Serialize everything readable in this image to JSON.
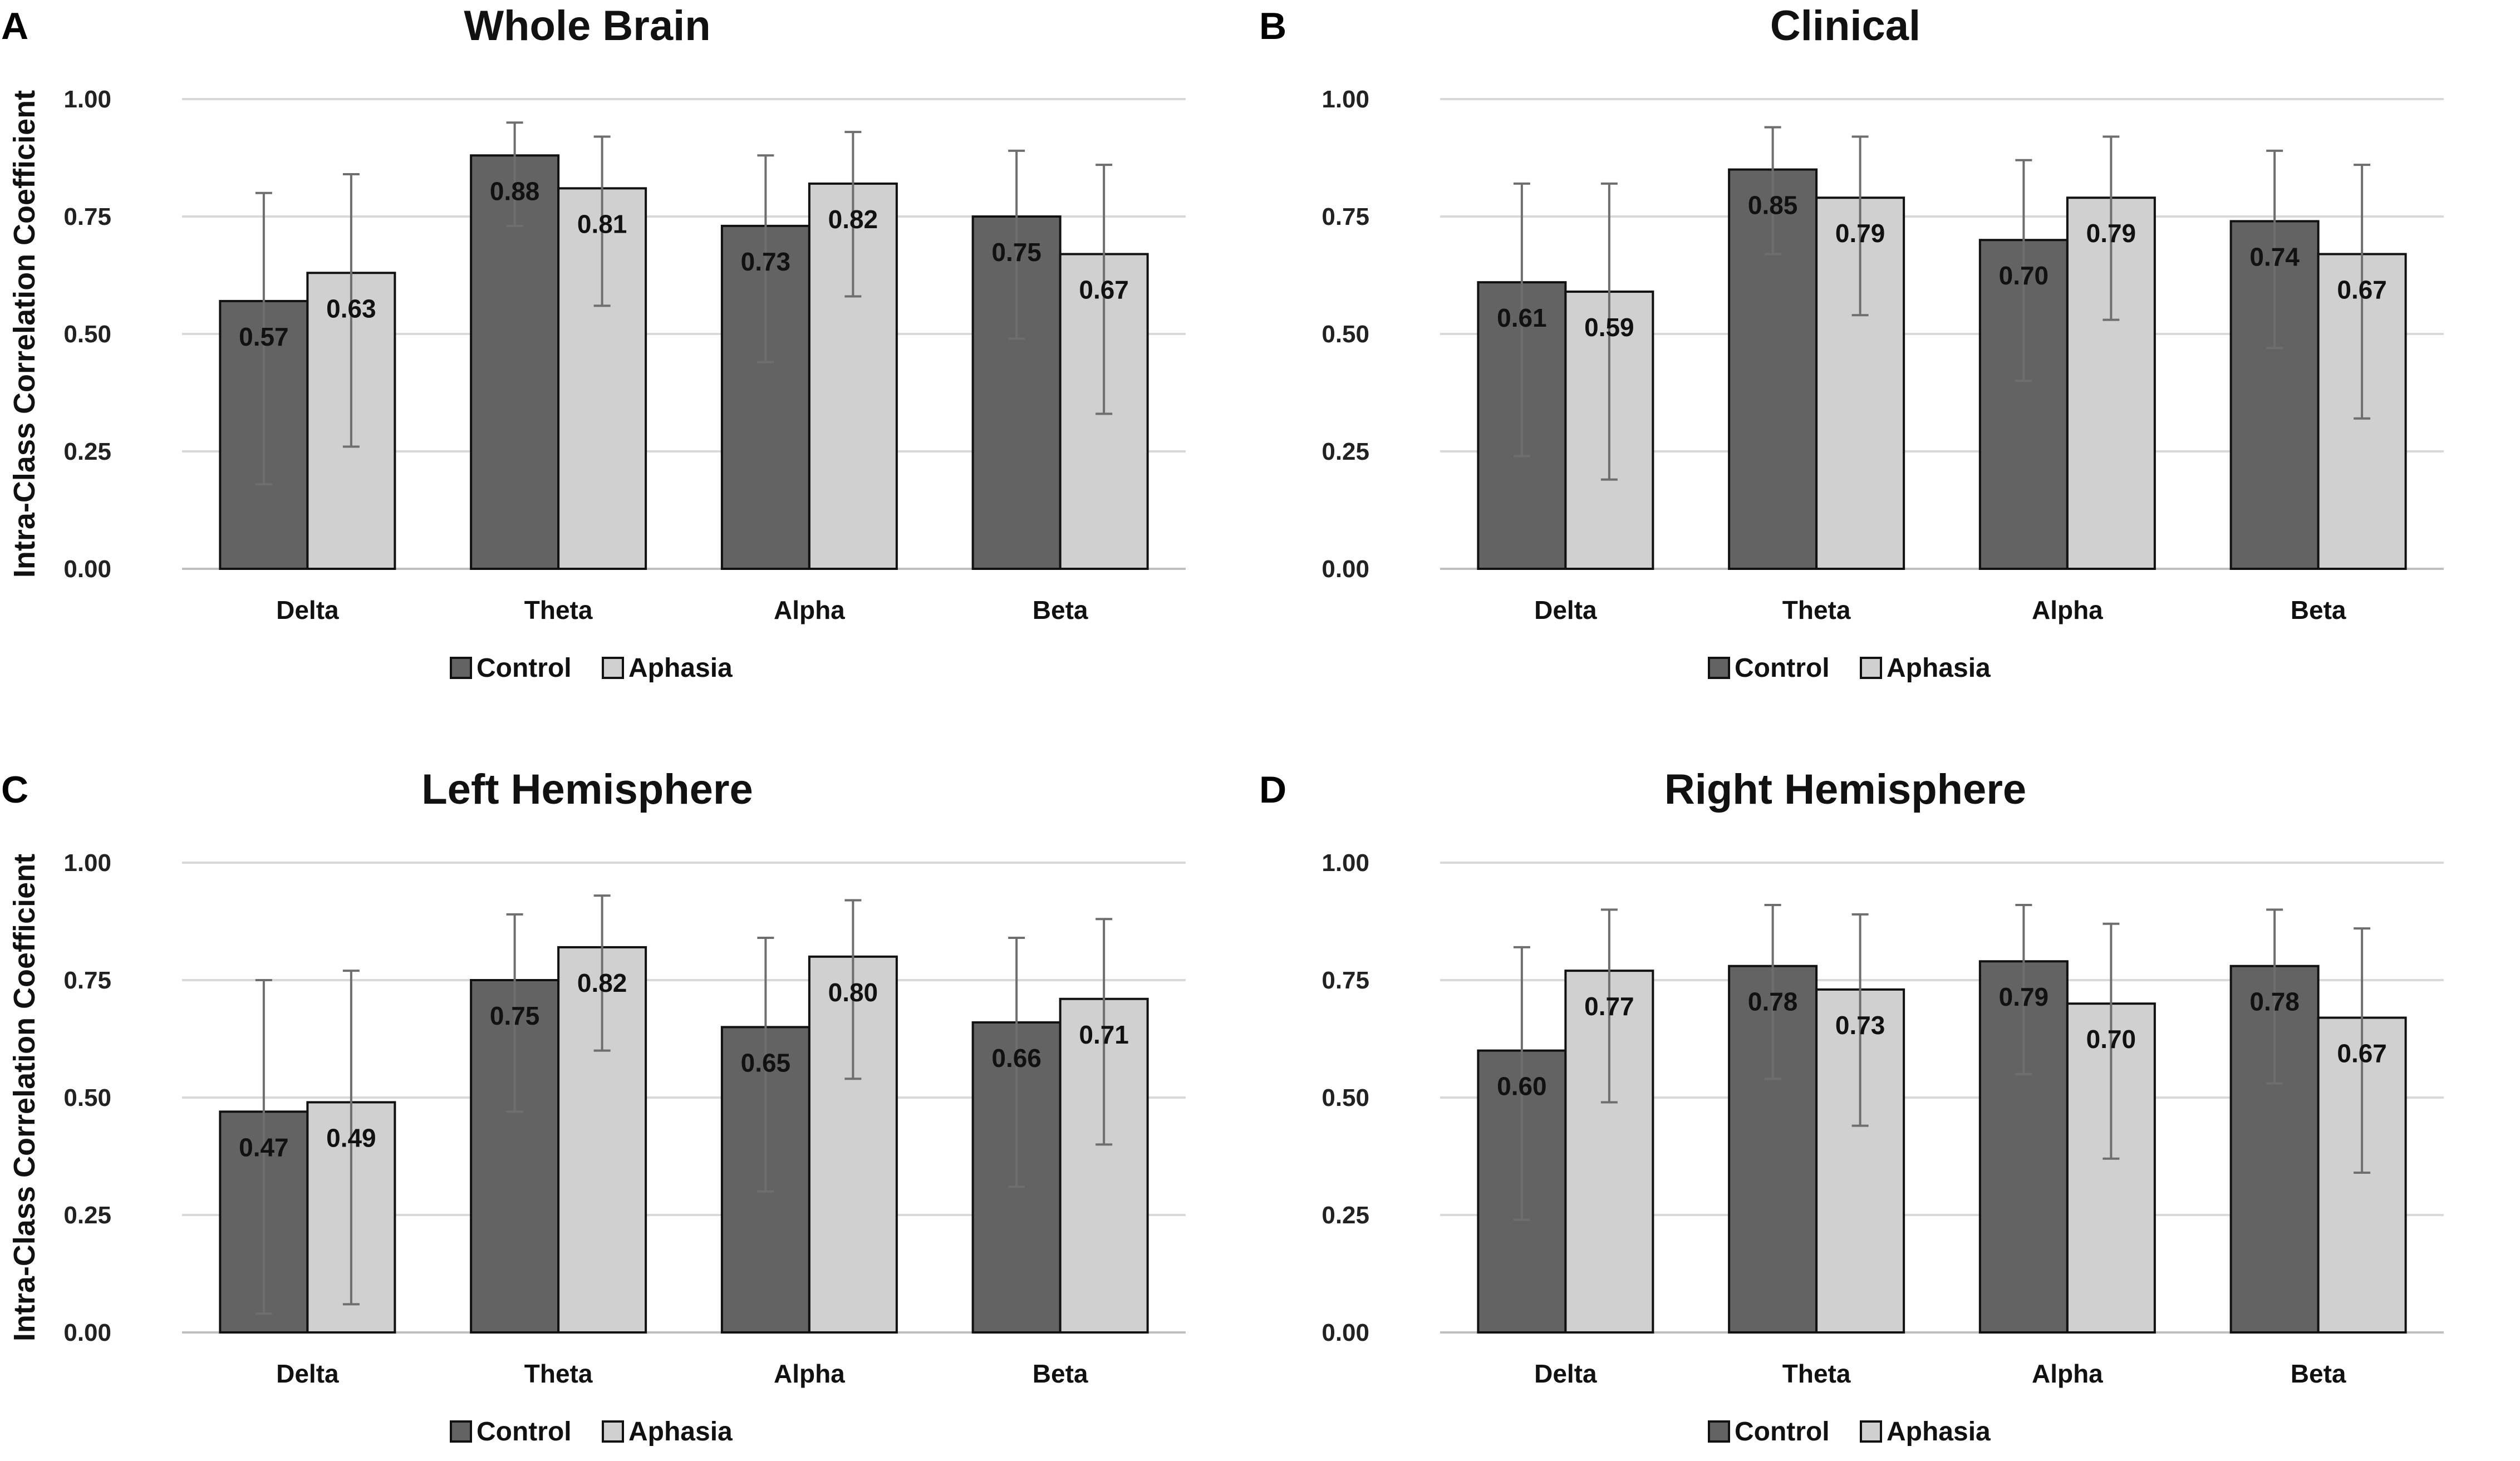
{
  "y_axis_label": "Intra-Class Correlation Coefficient",
  "legend": [
    "Control",
    "Aphasia"
  ],
  "colors": {
    "Control": "#636363",
    "Aphasia": "#d0d0d0"
  },
  "chart_data": [
    {
      "panel": "A",
      "type": "bar",
      "title": "Whole Brain",
      "categories": [
        "Delta",
        "Theta",
        "Alpha",
        "Beta"
      ],
      "ylim": [
        0,
        1
      ],
      "yticks": [
        "0.00",
        "0.25",
        "0.50",
        "0.75",
        "1.00"
      ],
      "series": [
        {
          "name": "Control",
          "values": [
            0.57,
            0.88,
            0.73,
            0.75
          ],
          "labels": [
            "0.57",
            "0.88",
            "0.73",
            "0.75"
          ],
          "err_low": [
            0.18,
            0.73,
            0.44,
            0.49
          ],
          "err_high": [
            0.8,
            0.95,
            0.88,
            0.89
          ]
        },
        {
          "name": "Aphasia",
          "values": [
            0.63,
            0.81,
            0.82,
            0.67
          ],
          "labels": [
            "0.63",
            "0.81",
            "0.82",
            "0.67"
          ],
          "err_low": [
            0.26,
            0.56,
            0.58,
            0.33
          ],
          "err_high": [
            0.84,
            0.92,
            0.93,
            0.86
          ]
        }
      ]
    },
    {
      "panel": "B",
      "type": "bar",
      "title": "Clinical",
      "categories": [
        "Delta",
        "Theta",
        "Alpha",
        "Beta"
      ],
      "ylim": [
        0,
        1
      ],
      "yticks": [
        "0.00",
        "0.25",
        "0.50",
        "0.75",
        "1.00"
      ],
      "series": [
        {
          "name": "Control",
          "values": [
            0.61,
            0.85,
            0.7,
            0.74
          ],
          "labels": [
            "0.61",
            "0.85",
            "0.70",
            "0.74"
          ],
          "err_low": [
            0.24,
            0.67,
            0.4,
            0.47
          ],
          "err_high": [
            0.82,
            0.94,
            0.87,
            0.89
          ]
        },
        {
          "name": "Aphasia",
          "values": [
            0.59,
            0.79,
            0.79,
            0.67
          ],
          "labels": [
            "0.59",
            "0.79",
            "0.79",
            "0.67"
          ],
          "err_low": [
            0.19,
            0.54,
            0.53,
            0.32
          ],
          "err_high": [
            0.82,
            0.92,
            0.92,
            0.86
          ]
        }
      ]
    },
    {
      "panel": "C",
      "type": "bar",
      "title": "Left Hemisphere",
      "categories": [
        "Delta",
        "Theta",
        "Alpha",
        "Beta"
      ],
      "ylim": [
        0,
        1
      ],
      "yticks": [
        "0.00",
        "0.25",
        "0.50",
        "0.75",
        "1.00"
      ],
      "series": [
        {
          "name": "Control",
          "values": [
            0.47,
            0.75,
            0.65,
            0.66
          ],
          "labels": [
            "0.47",
            "0.75",
            "0.65",
            "0.66"
          ],
          "err_low": [
            0.04,
            0.47,
            0.3,
            0.31
          ],
          "err_high": [
            0.75,
            0.89,
            0.84,
            0.84
          ]
        },
        {
          "name": "Aphasia",
          "values": [
            0.49,
            0.82,
            0.8,
            0.71
          ],
          "labels": [
            "0.49",
            "0.82",
            "0.80",
            "0.71"
          ],
          "err_low": [
            0.06,
            0.6,
            0.54,
            0.4
          ],
          "err_high": [
            0.77,
            0.93,
            0.92,
            0.88
          ]
        }
      ]
    },
    {
      "panel": "D",
      "type": "bar",
      "title": "Right Hemisphere",
      "categories": [
        "Delta",
        "Theta",
        "Alpha",
        "Beta"
      ],
      "ylim": [
        0,
        1
      ],
      "yticks": [
        "0.00",
        "0.25",
        "0.50",
        "0.75",
        "1.00"
      ],
      "series": [
        {
          "name": "Control",
          "values": [
            0.6,
            0.78,
            0.79,
            0.78
          ],
          "labels": [
            "0.60",
            "0.78",
            "0.79",
            "0.78"
          ],
          "err_low": [
            0.24,
            0.54,
            0.55,
            0.53
          ],
          "err_high": [
            0.82,
            0.91,
            0.91,
            0.9
          ]
        },
        {
          "name": "Aphasia",
          "values": [
            0.77,
            0.73,
            0.7,
            0.67
          ],
          "labels": [
            "0.77",
            "0.73",
            "0.70",
            "0.67"
          ],
          "err_low": [
            0.49,
            0.44,
            0.37,
            0.34
          ],
          "err_high": [
            0.9,
            0.89,
            0.87,
            0.86
          ]
        }
      ]
    }
  ]
}
